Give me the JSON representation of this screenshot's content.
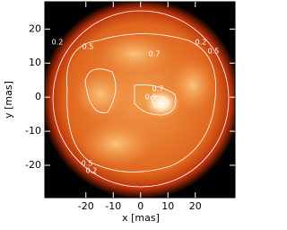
{
  "chart_data": {
    "type": "heatmap",
    "x_label": "x [mas]",
    "y_label": "y [mas]",
    "xlim": [
      -35,
      34.5
    ],
    "ylim": [
      -29.5,
      28
    ],
    "xticks": [
      -20,
      -10,
      0,
      10,
      20
    ],
    "yticks": [
      -20,
      -10,
      0,
      10,
      20
    ],
    "contour_labels": [
      "0.2",
      "0.5",
      "0.7",
      "0.5",
      "0.2",
      "0.7",
      "0.9",
      "0.5",
      "0.2"
    ],
    "contour_color": "#ffffff"
  }
}
